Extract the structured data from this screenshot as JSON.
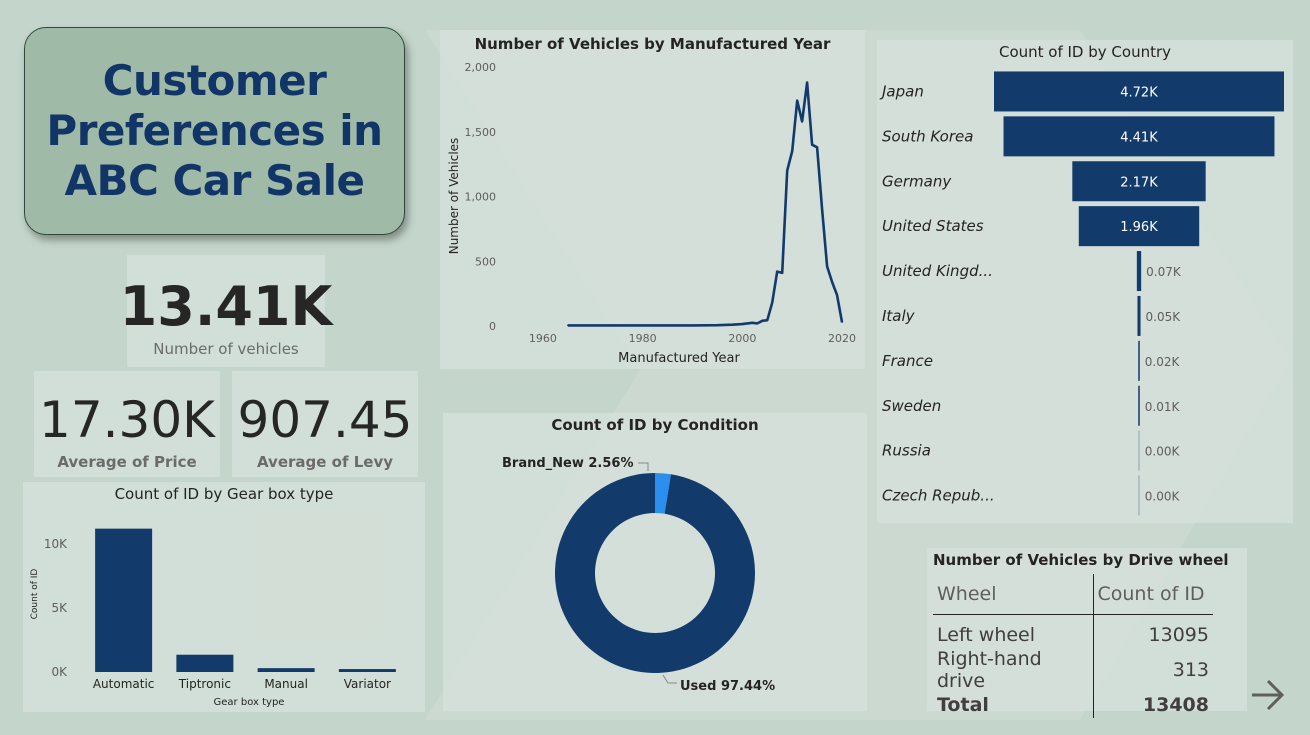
{
  "title": "Customer Preferences in ABC Car Sale",
  "title_lines": "Customer\nPreferences in\nABC Car Sale",
  "kpis": {
    "vehicles": {
      "value": "13.41K",
      "label": "Number of vehicles"
    },
    "price": {
      "value": "17.30K",
      "label": "Average of Price"
    },
    "levy": {
      "value": "907.45",
      "label": "Average of Levy"
    }
  },
  "colors": {
    "primary": "#123a6b",
    "accent": "#2b8ff0",
    "background": "#c4d6cb"
  },
  "nav": {
    "icon": "arrow-right-icon"
  },
  "chart_data": [
    {
      "type": "line",
      "title": "Number of Vehicles by Manufactured Year",
      "xlabel": "Manufactured Year",
      "ylabel": "Number of Vehicles",
      "xlim": [
        1955,
        2022
      ],
      "ylim": [
        0,
        2000
      ],
      "xticks": [
        1960,
        1980,
        2000,
        2020
      ],
      "yticks": [
        "0",
        "500",
        "1,000",
        "1,500",
        "2,000"
      ],
      "ytick_values": [
        0,
        500,
        1000,
        1500,
        2000
      ],
      "x": [
        1965,
        1970,
        1975,
        1980,
        1985,
        1990,
        1995,
        1998,
        2000,
        2002,
        2003,
        2004,
        2005,
        2006,
        2007,
        2008,
        2009,
        2010,
        2011,
        2012,
        2013,
        2014,
        2015,
        2016,
        2017,
        2018,
        2019,
        2020
      ],
      "values": [
        5,
        5,
        5,
        5,
        5,
        5,
        6,
        10,
        15,
        25,
        20,
        40,
        45,
        180,
        420,
        410,
        1200,
        1350,
        1740,
        1580,
        1880,
        1400,
        1380,
        900,
        460,
        340,
        240,
        30
      ]
    },
    {
      "type": "bar",
      "orientation": "horizontal",
      "title": "Count of ID by Country",
      "categories": [
        "Japan",
        "South Korea",
        "Germany",
        "United States",
        "United Kingd...",
        "Italy",
        "France",
        "Sweden",
        "Russia",
        "Czech Repub..."
      ],
      "values": [
        4.72,
        4.41,
        2.17,
        1.96,
        0.07,
        0.05,
        0.02,
        0.01,
        0.0,
        0.0
      ],
      "labels": [
        "4.72K",
        "4.41K",
        "2.17K",
        "1.96K",
        "0.07K",
        "0.05K",
        "0.02K",
        "0.01K",
        "0.00K",
        "0.00K"
      ]
    },
    {
      "type": "bar",
      "title": "Count of ID by Gear box type",
      "xlabel": "Gear box type",
      "ylabel": "Count of ID",
      "categories": [
        "Automatic",
        "Tiptronic",
        "Manual",
        "Variator"
      ],
      "values": [
        11200,
        1350,
        300,
        230
      ],
      "ylim": [
        0,
        12500
      ],
      "yticks": [
        "0K",
        "5K",
        "10K"
      ],
      "ytick_values": [
        0,
        5000,
        10000
      ]
    },
    {
      "type": "pie",
      "title": "Count of ID by Condition",
      "categories": [
        "Brand_New",
        "Used"
      ],
      "values": [
        2.56,
        97.44
      ],
      "labels": [
        "Brand_New 2.56%",
        "Used 97.44%"
      ]
    },
    {
      "type": "table",
      "title": "Number of Vehicles by Drive wheel",
      "columns": [
        "Wheel",
        "Count of ID"
      ],
      "rows": [
        [
          "Left wheel",
          "13095"
        ],
        [
          "Right-hand drive",
          "313"
        ]
      ],
      "total": [
        "Total",
        "13408"
      ]
    }
  ]
}
